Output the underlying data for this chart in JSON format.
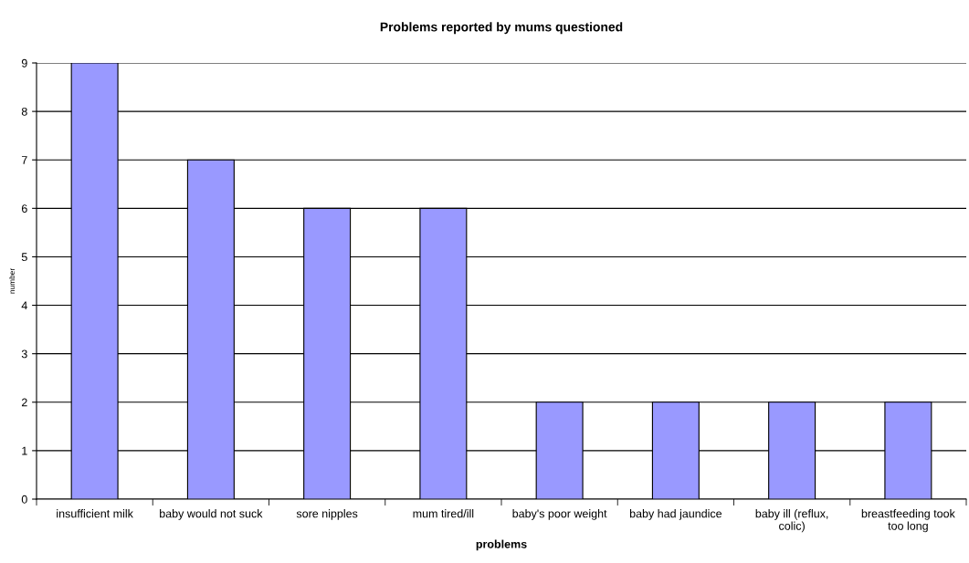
{
  "chart_data": {
    "type": "bar",
    "title": "Problems reported by mums questioned",
    "xlabel": "problems",
    "ylabel": "number",
    "categories": [
      "insufficient milk",
      "baby would not suck",
      "sore nipples",
      "mum tired/ill",
      "baby's poor weight",
      "baby had jaundice",
      "baby ill (reflux, colic)",
      "breastfeeding took too long"
    ],
    "values": [
      9,
      7,
      6,
      6,
      2,
      2,
      2,
      2
    ],
    "color": "#9999ff",
    "ylim": [
      0,
      9
    ],
    "yticks": [
      0,
      1,
      2,
      3,
      4,
      5,
      6,
      7,
      8,
      9
    ],
    "grid": "y",
    "legend": false
  }
}
